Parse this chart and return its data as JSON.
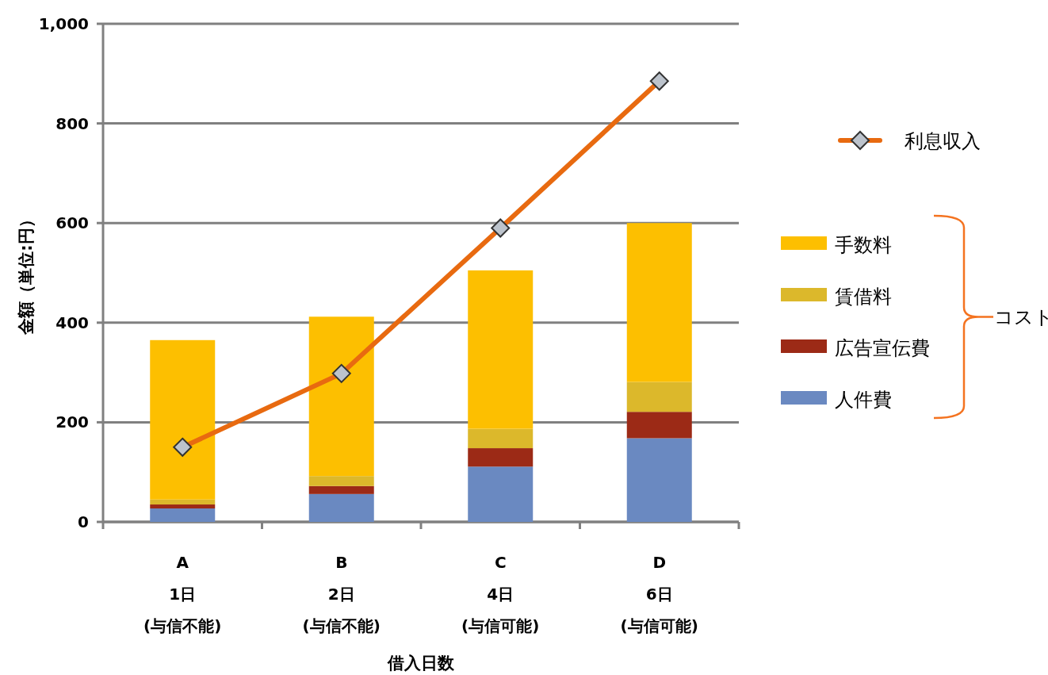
{
  "chart_data": {
    "type": "bar",
    "stacked": true,
    "categories": [
      "A\n1日\n(与信不能)",
      "B\n2日\n(与信不能)",
      "C\n4日\n(与信可能)",
      "D\n6日\n(与信可能)"
    ],
    "xlabel": "借入日数",
    "ylabel": "金額（単位:円）",
    "ylim": [
      0,
      1000
    ],
    "yticks": [
      0,
      200,
      400,
      600,
      800,
      {
        "value": 1000,
        "label": "1,000"
      }
    ],
    "grid": "y",
    "legend": "right",
    "series": [
      {
        "name": "人件費",
        "color": "#6a89c1",
        "values": [
          27,
          56,
          111,
          168
        ]
      },
      {
        "name": "広告宣伝費",
        "color": "#9c2a16",
        "values": [
          8,
          16,
          37,
          53
        ]
      },
      {
        "name": "賃借料",
        "color": "#dcb82b",
        "values": [
          10,
          20,
          39,
          60
        ]
      },
      {
        "name": "手数料",
        "color": "#fdbf00",
        "values": [
          320,
          320,
          318,
          319
        ]
      },
      {
        "name": "利息収入",
        "type": "line",
        "color": "#e86a10",
        "marker": "diamond",
        "values": [
          150,
          298,
          590,
          885
        ]
      }
    ],
    "annotations": [
      "コスト"
    ]
  }
}
